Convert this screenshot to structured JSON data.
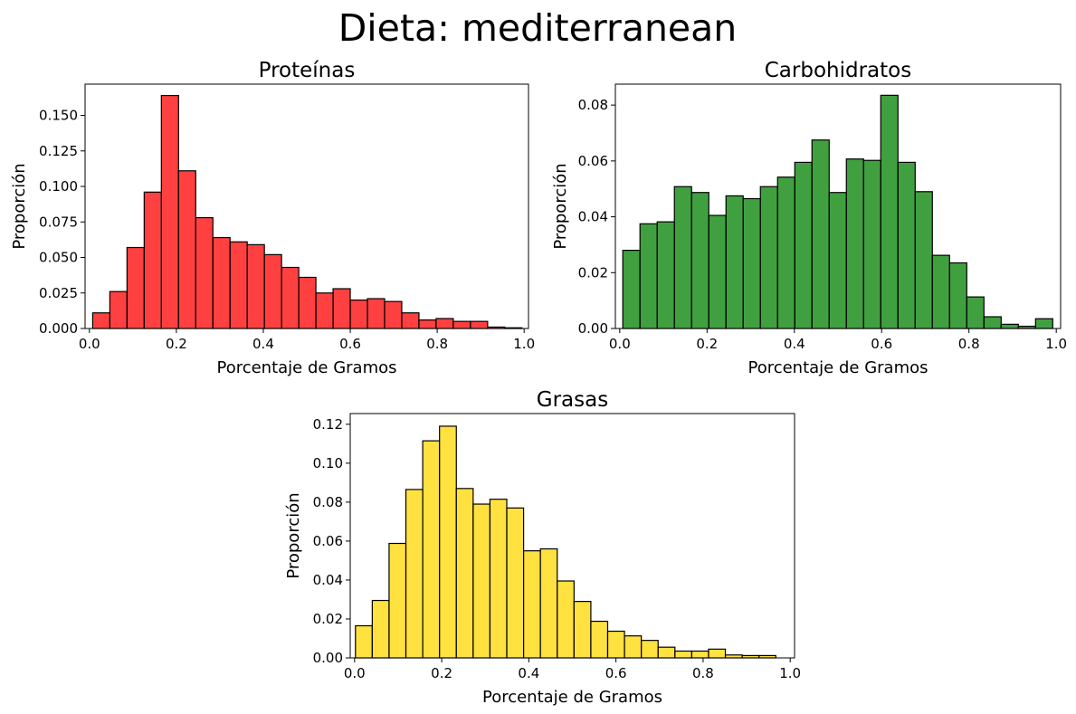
{
  "figure": {
    "suptitle": "Dieta: mediterranean"
  },
  "chart_data": [
    {
      "type": "bar",
      "title": "Proteínas",
      "xlabel": "Porcentaje de Gramos",
      "ylabel": "Proporción",
      "color": "#ff0000",
      "fill_opacity": 0.75,
      "edge_color": "#000000",
      "xlim": [
        -0.01,
        1.01
      ],
      "ylim": [
        0,
        0.172
      ],
      "xticks": [
        0.0,
        0.2,
        0.4,
        0.6,
        0.8,
        1.0
      ],
      "xtick_labels": [
        "0.0",
        "0.2",
        "0.4",
        "0.6",
        "0.8",
        "1.0"
      ],
      "yticks": [
        0.0,
        0.025,
        0.05,
        0.075,
        0.1,
        0.125,
        0.15
      ],
      "ytick_labels": [
        "0.000",
        "0.025",
        "0.050",
        "0.075",
        "0.100",
        "0.125",
        "0.150"
      ],
      "bin_start": 0.0075,
      "bin_width": 0.0395,
      "values": [
        0.011,
        0.026,
        0.057,
        0.096,
        0.164,
        0.111,
        0.078,
        0.064,
        0.061,
        0.059,
        0.052,
        0.043,
        0.036,
        0.025,
        0.028,
        0.02,
        0.021,
        0.019,
        0.011,
        0.006,
        0.007,
        0.005,
        0.005,
        0.001,
        0.0005
      ]
    },
    {
      "type": "bar",
      "title": "Carbohidratos",
      "xlabel": "Porcentaje de Gramos",
      "ylabel": "Proporción",
      "color": "#008000",
      "fill_opacity": 0.75,
      "edge_color": "#000000",
      "xlim": [
        -0.01,
        1.01
      ],
      "ylim": [
        0,
        0.0875
      ],
      "xticks": [
        0.0,
        0.2,
        0.4,
        0.6,
        0.8,
        1.0
      ],
      "xtick_labels": [
        "0.0",
        "0.2",
        "0.4",
        "0.6",
        "0.8",
        "1.0"
      ],
      "yticks": [
        0.0,
        0.02,
        0.04,
        0.06,
        0.08
      ],
      "ytick_labels": [
        "0.00",
        "0.02",
        "0.04",
        "0.06",
        "0.08"
      ],
      "bin_start": 0.007,
      "bin_width": 0.0394,
      "values": [
        0.028,
        0.0375,
        0.0382,
        0.0508,
        0.0487,
        0.0405,
        0.0475,
        0.0465,
        0.0508,
        0.0542,
        0.0595,
        0.0675,
        0.0487,
        0.0607,
        0.0602,
        0.0835,
        0.0595,
        0.049,
        0.0262,
        0.0235,
        0.0113,
        0.0042,
        0.0015,
        0.0008,
        0.0035
      ]
    },
    {
      "type": "bar",
      "title": "Grasas",
      "xlabel": "Porcentaje de Gramos",
      "ylabel": "Proporción",
      "color": "#ffd700",
      "fill_opacity": 0.75,
      "edge_color": "#000000",
      "xlim": [
        -0.01,
        1.01
      ],
      "ylim": [
        0,
        0.1255
      ],
      "xticks": [
        0.0,
        0.2,
        0.4,
        0.6,
        0.8,
        1.0
      ],
      "xtick_labels": [
        "0.0",
        "0.2",
        "0.4",
        "0.6",
        "0.8",
        "1.0"
      ],
      "yticks": [
        0.0,
        0.02,
        0.04,
        0.06,
        0.08,
        0.1,
        0.12
      ],
      "ytick_labels": [
        "0.00",
        "0.02",
        "0.04",
        "0.06",
        "0.08",
        "0.10",
        "0.12"
      ],
      "bin_start": 0.002,
      "bin_width": 0.0386,
      "values": [
        0.0165,
        0.0295,
        0.0588,
        0.0865,
        0.1115,
        0.119,
        0.087,
        0.079,
        0.0815,
        0.077,
        0.055,
        0.056,
        0.0395,
        0.029,
        0.0188,
        0.0137,
        0.0113,
        0.009,
        0.0055,
        0.0035,
        0.0035,
        0.0045,
        0.0015,
        0.0012,
        0.0012
      ]
    }
  ]
}
